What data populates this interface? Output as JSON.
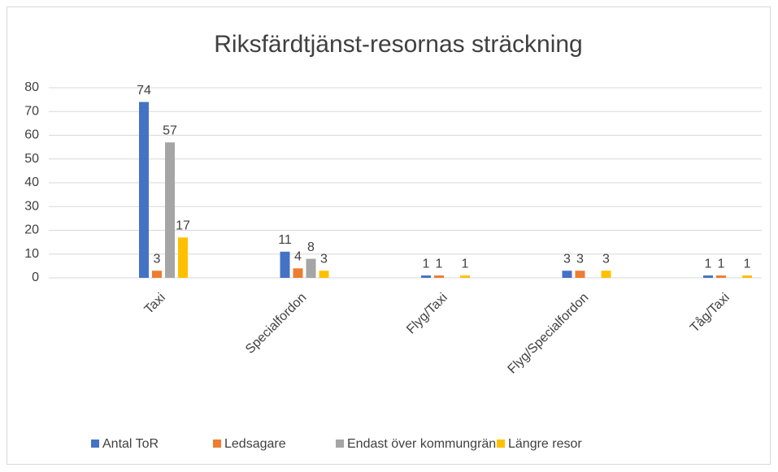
{
  "chart_data": {
    "type": "bar",
    "title": "Riksfärdtjänst-resornas sträckning",
    "categories": [
      "Taxi",
      "Specialfordon",
      "Flyg/Taxi",
      "Flyg/Specialfordon",
      "Tåg/Taxi"
    ],
    "series": [
      {
        "name": "Antal ToR",
        "color": "#4472c4",
        "values": [
          74,
          11,
          1,
          3,
          1
        ]
      },
      {
        "name": "Ledsagare",
        "color": "#ed7d31",
        "values": [
          3,
          4,
          1,
          3,
          1
        ]
      },
      {
        "name": "Endast över kommungräns",
        "color": "#a5a5a5",
        "values": [
          57,
          8,
          null,
          null,
          null
        ]
      },
      {
        "name": "Längre resor",
        "color": "#ffc000",
        "values": [
          17,
          3,
          1,
          3,
          1
        ]
      }
    ],
    "ylim": [
      0,
      80
    ],
    "yticks": [
      0,
      10,
      20,
      30,
      40,
      50,
      60,
      70,
      80
    ],
    "grid": true,
    "legend": "bottom"
  }
}
